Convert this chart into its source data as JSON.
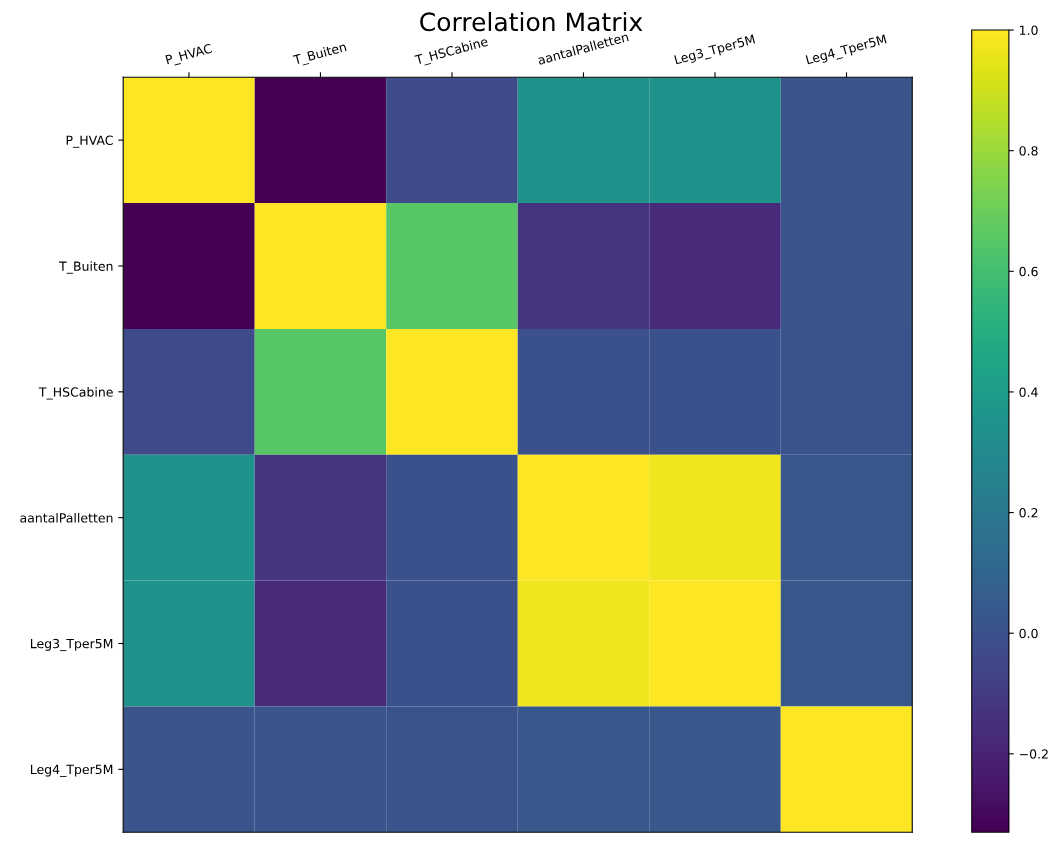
{
  "chart_data": {
    "type": "heatmap",
    "title": "Correlation Matrix",
    "categories": [
      "P_HVAC",
      "T_Buiten",
      "T_HSCabine",
      "aantalPalletten",
      "Leg3_Tper5M",
      "Leg4_Tper5M"
    ],
    "y_categories": [
      "P_HVAC",
      "T_Buiten",
      "T_HSCabine",
      "aantalPalletten",
      "Leg3_Tper5M",
      "Leg4_Tper5M"
    ],
    "cells": [
      [
        1.0,
        -0.33,
        -0.03,
        0.35,
        0.35,
        0.02
      ],
      [
        -0.33,
        1.0,
        0.65,
        -0.13,
        -0.17,
        0.02
      ],
      [
        -0.03,
        0.65,
        1.0,
        0.0,
        0.0,
        0.01
      ],
      [
        0.35,
        -0.13,
        0.0,
        1.0,
        0.97,
        0.03
      ],
      [
        0.35,
        -0.17,
        0.0,
        0.97,
        1.0,
        0.03
      ],
      [
        0.02,
        0.02,
        0.01,
        0.03,
        0.03,
        1.0
      ]
    ],
    "clim": [
      -0.33,
      1.0
    ],
    "cticks": [
      {
        "value": -0.2,
        "label": "−0.2"
      },
      {
        "value": 0.0,
        "label": "0.0"
      },
      {
        "value": 0.2,
        "label": "0.2"
      },
      {
        "value": 0.4,
        "label": "0.4"
      },
      {
        "value": 0.6,
        "label": "0.6"
      },
      {
        "value": 0.8,
        "label": "0.8"
      },
      {
        "value": 1.0,
        "label": "1.0"
      }
    ]
  }
}
